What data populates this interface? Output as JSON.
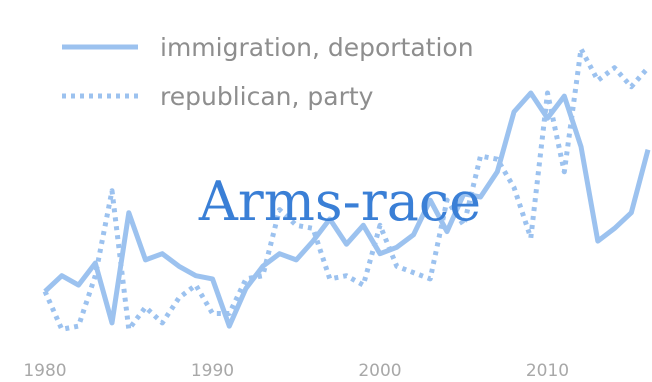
{
  "chart_data": {
    "type": "line",
    "title": "",
    "overlay_text": "Arms-race",
    "xlabel": "",
    "ylabel": "",
    "xlim": [
      1980,
      2016
    ],
    "ylim": [
      0,
      1
    ],
    "x_ticks": [
      1980,
      1990,
      2000,
      2010
    ],
    "grid": false,
    "legend_position": "top-left",
    "x": [
      1980,
      1981,
      1982,
      1983,
      1984,
      1985,
      1986,
      1987,
      1988,
      1989,
      1990,
      1991,
      1992,
      1993,
      1994,
      1995,
      1996,
      1997,
      1998,
      1999,
      2000,
      2001,
      2002,
      2003,
      2004,
      2005,
      2006,
      2007,
      2008,
      2009,
      2010,
      2011,
      2012,
      2013,
      2014,
      2015,
      2016
    ],
    "series": [
      {
        "name": "immigration, deportation",
        "style": "solid",
        "color": "#9cc2ef",
        "values": [
          0.17,
          0.22,
          0.19,
          0.26,
          0.07,
          0.42,
          0.27,
          0.29,
          0.25,
          0.22,
          0.21,
          0.06,
          0.18,
          0.25,
          0.29,
          0.27,
          0.33,
          0.4,
          0.32,
          0.38,
          0.29,
          0.31,
          0.35,
          0.46,
          0.36,
          0.48,
          0.47,
          0.55,
          0.74,
          0.8,
          0.72,
          0.79,
          0.63,
          0.33,
          0.37,
          0.42,
          0.62
        ]
      },
      {
        "name": "republican, party",
        "style": "dotted",
        "color": "#9cc2ef",
        "values": [
          0.17,
          0.05,
          0.06,
          0.22,
          0.49,
          0.05,
          0.12,
          0.07,
          0.15,
          0.19,
          0.1,
          0.1,
          0.21,
          0.22,
          0.43,
          0.38,
          0.37,
          0.21,
          0.22,
          0.19,
          0.38,
          0.25,
          0.23,
          0.21,
          0.46,
          0.38,
          0.6,
          0.59,
          0.5,
          0.34,
          0.8,
          0.55,
          0.94,
          0.84,
          0.88,
          0.82,
          0.88
        ]
      }
    ]
  }
}
